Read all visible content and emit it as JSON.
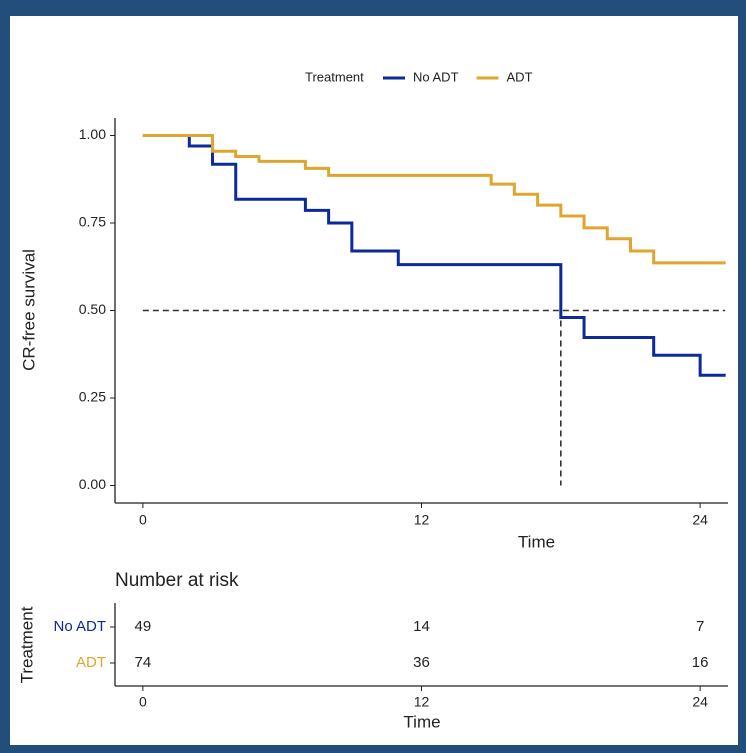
{
  "chart_data": [
    {
      "type": "step",
      "legend_title": "Treatment",
      "xlabel": "Time",
      "ylabel": "CR-free survival",
      "xlim": [
        -1.2,
        25.2
      ],
      "ylim": [
        -0.05,
        1.05
      ],
      "xticks": [
        0,
        12,
        24
      ],
      "yticks": [
        {
          "value": 0,
          "label": "0.00"
        },
        {
          "value": 0.25,
          "label": "0.25"
        },
        {
          "value": 0.5,
          "label": "0.50"
        },
        {
          "value": 0.75,
          "label": "0.75"
        },
        {
          "value": 1,
          "label": "1.00"
        }
      ],
      "series": [
        {
          "name": "No ADT",
          "color": "#0d2a9a",
          "x": [
            0,
            2,
            3,
            4,
            7,
            8,
            9,
            11,
            18,
            19,
            22,
            24,
            25.1
          ],
          "values": [
            1,
            0.97,
            0.918,
            0.818,
            0.786,
            0.75,
            0.67,
            0.631,
            0.48,
            0.423,
            0.372,
            0.315,
            0.315
          ]
        },
        {
          "name": "ADT",
          "color": "#dfa52e",
          "x": [
            0,
            3,
            4,
            5,
            7,
            8,
            15,
            16,
            17,
            18,
            19,
            20,
            21,
            22,
            25.1
          ],
          "values": [
            1,
            0.955,
            0.94,
            0.926,
            0.906,
            0.886,
            0.861,
            0.832,
            0.801,
            0.77,
            0.736,
            0.705,
            0.67,
            0.636,
            0.636
          ]
        }
      ],
      "median": {
        "survival": 0.5,
        "time": 18
      }
    },
    {
      "type": "risk_table",
      "title": "Number at risk",
      "ylabel": "Treatment",
      "xlabel": "Time",
      "xlim": [
        -1.2,
        25.2
      ],
      "xticks": [
        0,
        12,
        24
      ],
      "x": [
        0,
        12,
        24
      ],
      "series": [
        {
          "name": "No ADT",
          "color": "#0d2a9a",
          "values": [
            49,
            14,
            7
          ]
        },
        {
          "name": "ADT",
          "color": "#dfa52e",
          "values": [
            74,
            36,
            16
          ]
        }
      ]
    }
  ]
}
